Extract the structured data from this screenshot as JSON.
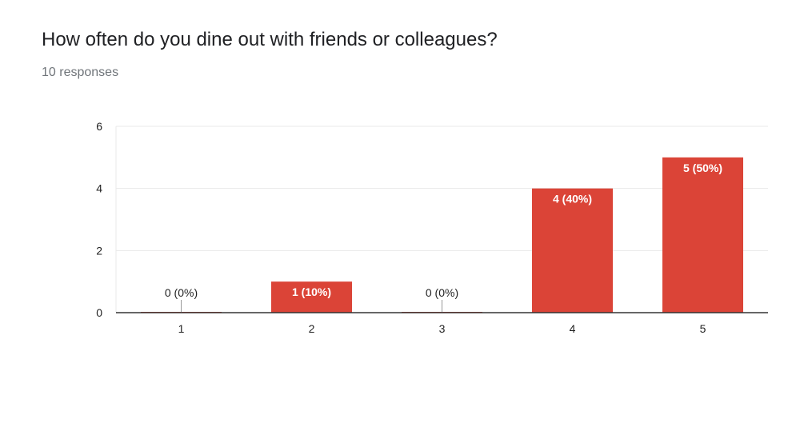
{
  "question": {
    "title": "How often do you dine out with friends or colleagues?",
    "responses": "10 responses"
  },
  "colors": {
    "bar": "#db4437",
    "gridline": "#e8e8e8",
    "axis": "#333333",
    "tick_label": "#222222",
    "label_inside": "#ffffff",
    "label_outside": "#222222"
  },
  "chart_data": {
    "type": "bar",
    "categories": [
      "1",
      "2",
      "3",
      "4",
      "5"
    ],
    "values": [
      0,
      1,
      0,
      4,
      5
    ],
    "data_labels": [
      "0 (0%)",
      "1 (10%)",
      "0 (0%)",
      "4 (40%)",
      "5 (50%)"
    ],
    "ylim": [
      0,
      6
    ],
    "yticks": [
      0,
      2,
      4,
      6
    ],
    "xlabel": "",
    "ylabel": "",
    "grid": true
  }
}
